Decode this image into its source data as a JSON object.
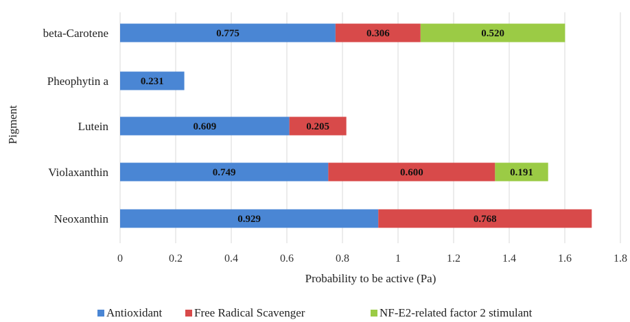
{
  "chart_data": {
    "type": "bar",
    "orientation": "horizontal",
    "stacked": true,
    "categories": [
      "beta-Carotene",
      "Pheophytin a",
      "Lutein",
      "Violaxanthin",
      "Neoxanthin"
    ],
    "series": [
      {
        "name": "Antioxidant",
        "color": "#4a86d4",
        "values": [
          0.775,
          0.231,
          0.609,
          0.749,
          0.929
        ],
        "labels": [
          "0.775",
          "0.231",
          "0.609",
          "0.749",
          "0.929"
        ]
      },
      {
        "name": "Free Radical Scavenger",
        "color": "#d84a4a",
        "values": [
          0.306,
          0,
          0.205,
          0.6,
          0.768
        ],
        "labels": [
          "0.306",
          "",
          "0.205",
          "0.600",
          "0.768"
        ]
      },
      {
        "name": "NF-E2-related factor 2 stimulant",
        "color": "#9bcb45",
        "values": [
          0.52,
          0,
          0,
          0.191,
          0
        ],
        "labels": [
          "0.520",
          "",
          "",
          "0.191",
          ""
        ]
      }
    ],
    "xlabel": "Probability  to be active (Pa)",
    "ylabel": "Pigment",
    "xlim": [
      0,
      1.8
    ],
    "xticks": [
      "0",
      "0.2",
      "0.4",
      "0.6",
      "0.8",
      "1",
      "1.2",
      "1.4",
      "1.6",
      "1.8"
    ],
    "grid": "vertical",
    "legend": "bottom"
  }
}
